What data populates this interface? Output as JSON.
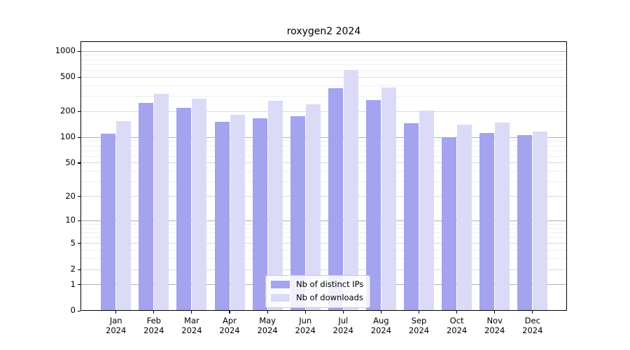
{
  "title": "roxygen2 2024",
  "chart_data": {
    "type": "bar",
    "title": "roxygen2 2024",
    "categories": [
      "Jan 2024",
      "Feb 2024",
      "Mar 2024",
      "Apr 2024",
      "May 2024",
      "Jun 2024",
      "Jul 2024",
      "Aug 2024",
      "Sep 2024",
      "Oct 2024",
      "Nov 2024",
      "Dec 2024"
    ],
    "months": [
      "Jan",
      "Feb",
      "Mar",
      "Apr",
      "May",
      "Jun",
      "Jul",
      "Aug",
      "Sep",
      "Oct",
      "Nov",
      "Dec"
    ],
    "year_label": "2024",
    "series": [
      {
        "name": "Nb of distinct IPs",
        "color": "#a3a3f0",
        "values": [
          109,
          250,
          220,
          149,
          166,
          174,
          371,
          267,
          145,
          100,
          111,
          105
        ]
      },
      {
        "name": "Nb of downloads",
        "color": "#dbdbf8",
        "values": [
          152,
          316,
          281,
          180,
          266,
          242,
          600,
          373,
          201,
          140,
          147,
          116
        ]
      }
    ],
    "y_axis": {
      "scale": "log1p",
      "ticks": [
        0,
        1,
        2,
        5,
        10,
        20,
        50,
        100,
        200,
        500,
        1000
      ],
      "range": [
        0,
        1275
      ]
    },
    "x_axis": {
      "tick_label_lines": 2
    },
    "grid": true,
    "legend": {
      "position": "lower center",
      "entries": [
        "Nb of distinct IPs",
        "Nb of downloads"
      ]
    }
  }
}
